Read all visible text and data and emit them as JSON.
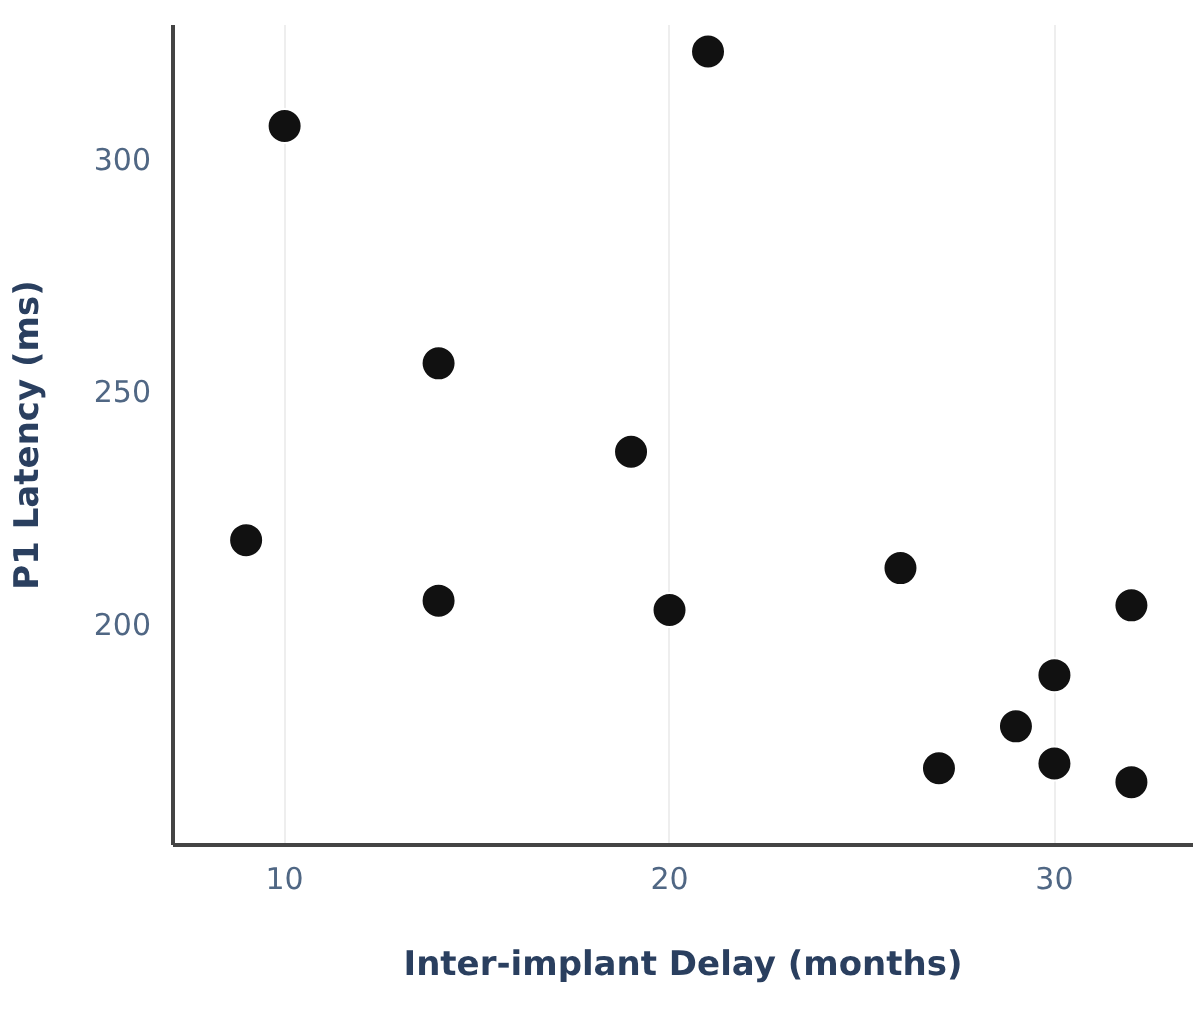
{
  "chart_data": {
    "type": "scatter",
    "xlabel": "Inter-implant Delay (months)",
    "ylabel": "P1 Latency (ms)",
    "x": [
      9,
      10,
      14,
      14,
      19,
      20,
      21,
      26,
      27,
      29,
      30,
      30,
      32,
      32
    ],
    "values": [
      218,
      307,
      256,
      205,
      237,
      203,
      323,
      212,
      169,
      178,
      189,
      170,
      204,
      166
    ],
    "color": "#111111",
    "marker": "circle",
    "xlim": [
      7.1,
      33.6
    ],
    "ylim": [
      152.5,
      328.7
    ],
    "xticks": [
      10,
      20,
      30
    ],
    "yticks": [
      200,
      250,
      300
    ],
    "grid": "x"
  }
}
